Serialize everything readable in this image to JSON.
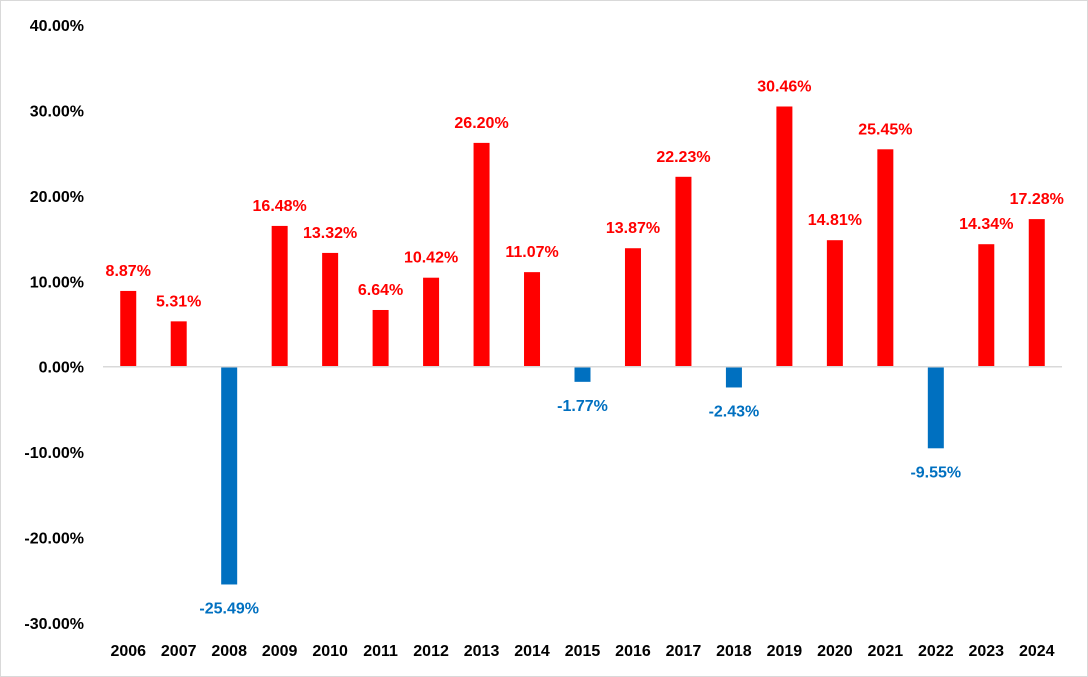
{
  "chart_data": {
    "type": "bar",
    "title": "",
    "xlabel": "",
    "ylabel": "",
    "ylim": [
      -30,
      40
    ],
    "y_ticks": [
      40,
      30,
      20,
      10,
      0,
      -10,
      -20,
      -30
    ],
    "y_tick_labels": [
      "40.00%",
      "30.00%",
      "20.00%",
      "10.00%",
      "0.00%",
      "-10.00%",
      "-20.00%",
      "-30.00%"
    ],
    "categories": [
      "2006",
      "2007",
      "2008",
      "2009",
      "2010",
      "2011",
      "2012",
      "2013",
      "2014",
      "2015",
      "2016",
      "2017",
      "2018",
      "2019",
      "2020",
      "2021",
      "2022",
      "2023",
      "2024"
    ],
    "values": [
      8.87,
      5.31,
      -25.49,
      16.48,
      13.32,
      6.64,
      10.42,
      26.2,
      11.07,
      -1.77,
      13.87,
      22.23,
      -2.43,
      30.46,
      14.81,
      25.45,
      -9.55,
      14.34,
      17.28
    ],
    "data_labels": [
      "8.87%",
      "5.31%",
      "-25.49%",
      "16.48%",
      "13.32%",
      "6.64%",
      "10.42%",
      "26.20%",
      "11.07%",
      "-1.77%",
      "13.87%",
      "22.23%",
      "-2.43%",
      "30.46%",
      "14.81%",
      "25.45%",
      "-9.55%",
      "14.34%",
      "17.28%"
    ],
    "grid": false,
    "legend": "none",
    "colors": {
      "positive": "#ff0000",
      "negative": "#0070c0",
      "axis": "#d9d9d9",
      "tick_text": "#000000"
    }
  }
}
